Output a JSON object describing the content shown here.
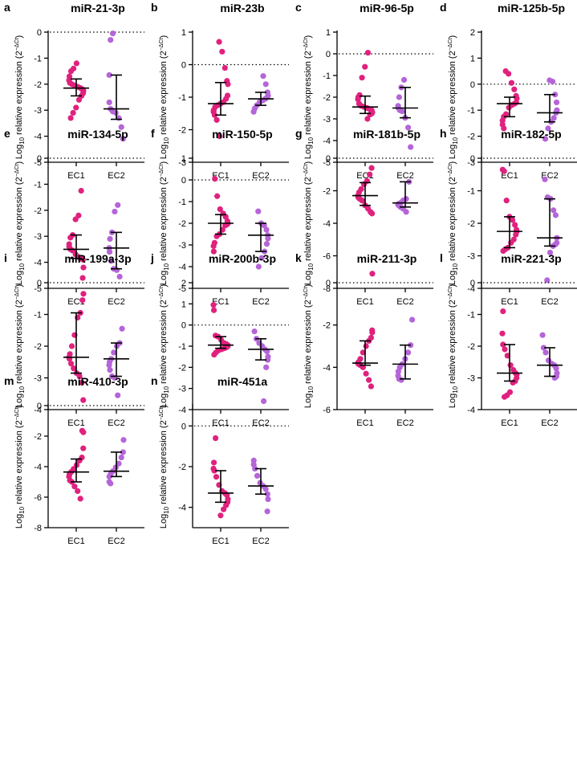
{
  "ylabel_parts": {
    "log": "Log",
    "sub": "10",
    "mid": " relative expression (2",
    "sup": "−ΔCt",
    "end": ")"
  },
  "colors": {
    "EC1": "#e0217e",
    "EC2": "#b565d8"
  },
  "chart_data": [
    {
      "type": "scatter",
      "letter": "a",
      "title": "miR-21-3p",
      "xlabel": "",
      "categories": [
        "EC1",
        "EC2"
      ],
      "ylim": [
        -5,
        0
      ],
      "yticks": [
        0,
        -1,
        -2,
        -3,
        -4,
        -5
      ],
      "series": [
        {
          "name": "EC1",
          "median": -2.15,
          "iqr": [
            -2.45,
            -1.8
          ],
          "values": [
            -1.2,
            -1.4,
            -1.5,
            -1.7,
            -1.85,
            -1.95,
            -2.0,
            -2.05,
            -2.1,
            -2.15,
            -2.2,
            -2.25,
            -2.35,
            -2.45,
            -2.6,
            -2.9,
            -3.1,
            -3.3
          ]
        },
        {
          "name": "EC2",
          "median": -2.95,
          "iqr": [
            -3.35,
            -1.65
          ],
          "values": [
            -0.05,
            -0.3,
            -1.65,
            -2.7,
            -2.95,
            -3.05,
            -3.1,
            -3.3,
            -3.65,
            -4.1
          ]
        }
      ]
    },
    {
      "type": "scatter",
      "letter": "b",
      "title": "miR-23b",
      "xlabel": "",
      "categories": [
        "EC1",
        "EC2"
      ],
      "ylim": [
        -3,
        1
      ],
      "yticks": [
        1,
        0,
        -1,
        -2,
        -3
      ],
      "series": [
        {
          "name": "EC1",
          "median": -1.2,
          "iqr": [
            -1.55,
            -0.55
          ],
          "values": [
            0.7,
            0.4,
            -0.1,
            -0.5,
            -0.6,
            -0.95,
            -1.05,
            -1.15,
            -1.2,
            -1.25,
            -1.3,
            -1.4,
            -1.45,
            -1.55,
            -1.7,
            -2.2
          ]
        },
        {
          "name": "EC2",
          "median": -1.05,
          "iqr": [
            -1.25,
            -0.85
          ],
          "values": [
            -0.35,
            -0.6,
            -0.85,
            -0.95,
            -1.0,
            -1.05,
            -1.1,
            -1.15,
            -1.25,
            -1.35,
            -1.45
          ]
        }
      ]
    },
    {
      "type": "scatter",
      "letter": "c",
      "title": "miR-96-5p",
      "xlabel": "",
      "categories": [
        "EC1",
        "EC2"
      ],
      "ylim": [
        -5,
        1
      ],
      "yticks": [
        1,
        0,
        -1,
        -2,
        -3,
        -4,
        -5
      ],
      "series": [
        {
          "name": "EC1",
          "median": -2.45,
          "iqr": [
            -2.75,
            -1.95
          ],
          "values": [
            0.05,
            -0.6,
            -1.1,
            -1.9,
            -2.0,
            -2.1,
            -2.3,
            -2.4,
            -2.45,
            -2.5,
            -2.55,
            -2.6,
            -2.7,
            -2.75,
            -2.8,
            -3.0
          ]
        },
        {
          "name": "EC2",
          "median": -2.5,
          "iqr": [
            -2.95,
            -1.55
          ],
          "values": [
            -1.2,
            -1.55,
            -2.0,
            -2.4,
            -2.5,
            -2.6,
            -2.65,
            -2.95,
            -3.4,
            -4.3
          ]
        }
      ]
    },
    {
      "type": "scatter",
      "letter": "d",
      "title": "miR-125b-5p",
      "xlabel": "",
      "categories": [
        "EC1",
        "EC2"
      ],
      "ylim": [
        -3,
        2
      ],
      "yticks": [
        2,
        1,
        0,
        -1,
        -2,
        -3
      ],
      "series": [
        {
          "name": "EC1",
          "median": -0.75,
          "iqr": [
            -1.25,
            -0.5
          ],
          "values": [
            0.5,
            0.4,
            0.05,
            -0.2,
            -0.45,
            -0.55,
            -0.7,
            -0.75,
            -0.8,
            -0.9,
            -1.15,
            -1.25,
            -1.4,
            -1.55,
            -1.7
          ]
        },
        {
          "name": "EC2",
          "median": -1.1,
          "iqr": [
            -1.45,
            -0.4
          ],
          "values": [
            0.15,
            0.1,
            -0.4,
            -0.7,
            -1.0,
            -1.1,
            -1.3,
            -1.45,
            -1.7,
            -2.1
          ]
        }
      ]
    },
    {
      "type": "scatter",
      "letter": "e",
      "title": "miR-134-5p",
      "xlabel": "",
      "categories": [
        "EC1",
        "EC2"
      ],
      "ylim": [
        -5,
        0
      ],
      "yticks": [
        0,
        -1,
        -2,
        -3,
        -4,
        -5
      ],
      "series": [
        {
          "name": "EC1",
          "median": -3.5,
          "iqr": [
            -3.85,
            -2.95
          ],
          "values": [
            -1.25,
            -2.2,
            -2.35,
            -2.95,
            -3.05,
            -3.3,
            -3.4,
            -3.5,
            -3.55,
            -3.7,
            -3.8,
            -3.85,
            -3.9,
            -4.2,
            -4.6
          ]
        },
        {
          "name": "EC2",
          "median": -3.45,
          "iqr": [
            -4.25,
            -2.85
          ],
          "values": [
            -1.8,
            -2.05,
            -2.85,
            -3.1,
            -3.45,
            -3.6,
            -3.95,
            -4.25,
            -4.3,
            -4.55
          ]
        }
      ]
    },
    {
      "type": "scatter",
      "letter": "f",
      "title": "miR-150-5p",
      "xlabel": "",
      "categories": [
        "EC1",
        "EC2"
      ],
      "ylim": [
        -5,
        1
      ],
      "yticks": [
        1,
        0,
        -1,
        -2,
        -3,
        -4,
        -5
      ],
      "series": [
        {
          "name": "EC1",
          "median": -2.0,
          "iqr": [
            -2.5,
            -1.6
          ],
          "values": [
            0.05,
            -0.75,
            -1.35,
            -1.55,
            -1.7,
            -1.9,
            -2.0,
            -2.05,
            -2.1,
            -2.3,
            -2.5,
            -2.6,
            -2.9,
            -3.05,
            -3.3
          ]
        },
        {
          "name": "EC2",
          "median": -2.55,
          "iqr": [
            -3.3,
            -2.0
          ],
          "values": [
            -1.45,
            -2.0,
            -2.1,
            -2.3,
            -2.55,
            -2.7,
            -2.95,
            -3.3,
            -3.6,
            -4.0
          ]
        }
      ]
    },
    {
      "type": "scatter",
      "letter": "g",
      "title": "miR-181b-5p",
      "xlabel": "",
      "categories": [
        "EC1",
        "EC2"
      ],
      "ylim": [
        -8,
        0
      ],
      "yticks": [
        0,
        -2,
        -4,
        -6,
        -8
      ],
      "series": [
        {
          "name": "EC1",
          "median": -2.3,
          "iqr": [
            -2.9,
            -1.5
          ],
          "values": [
            -0.6,
            -1.0,
            -1.4,
            -1.6,
            -1.9,
            -2.1,
            -2.3,
            -2.4,
            -2.5,
            -2.6,
            -2.9,
            -3.1,
            -3.3,
            -3.4,
            -7.1
          ]
        },
        {
          "name": "EC2",
          "median": -2.75,
          "iqr": [
            -3.0,
            -1.45
          ],
          "values": [
            -1.45,
            -2.5,
            -2.6,
            -2.75,
            -2.8,
            -2.85,
            -2.9,
            -3.0,
            -3.1,
            -3.3
          ]
        }
      ]
    },
    {
      "type": "scatter",
      "letter": "h",
      "title": "miR-182-5p",
      "xlabel": "",
      "categories": [
        "EC1",
        "EC2"
      ],
      "ylim": [
        -4,
        0
      ],
      "yticks": [
        0,
        -1,
        -2,
        -3,
        -4
      ],
      "series": [
        {
          "name": "EC1",
          "median": -2.25,
          "iqr": [
            -2.75,
            -1.8
          ],
          "values": [
            -0.35,
            -0.4,
            -1.3,
            -1.8,
            -1.9,
            -2.05,
            -2.2,
            -2.25,
            -2.35,
            -2.5,
            -2.6,
            -2.75,
            -2.8,
            -2.85
          ]
        },
        {
          "name": "EC2",
          "median": -2.45,
          "iqr": [
            -2.7,
            -1.25
          ],
          "values": [
            -0.65,
            -1.2,
            -1.25,
            -1.6,
            -1.75,
            -2.45,
            -2.6,
            -2.65,
            -2.7,
            -2.9,
            -3.75
          ]
        }
      ]
    },
    {
      "type": "scatter",
      "letter": "i",
      "title": "miR-199a-3p",
      "xlabel": "",
      "categories": [
        "EC1",
        "EC2"
      ],
      "ylim": [
        -4,
        0
      ],
      "yticks": [
        0,
        -1,
        -2,
        -3,
        -4
      ],
      "series": [
        {
          "name": "EC1",
          "median": -2.35,
          "iqr": [
            -2.85,
            -0.95
          ],
          "values": [
            -0.35,
            -0.55,
            -0.95,
            -1.1,
            -1.65,
            -2.0,
            -2.25,
            -2.35,
            -2.4,
            -2.55,
            -2.7,
            -2.85,
            -2.95,
            -3.15,
            -3.7
          ]
        },
        {
          "name": "EC2",
          "median": -2.4,
          "iqr": [
            -2.95,
            -1.9
          ],
          "values": [
            -1.45,
            -1.9,
            -2.0,
            -2.2,
            -2.4,
            -2.5,
            -2.6,
            -2.75,
            -2.95,
            -3.0,
            -3.55
          ]
        }
      ]
    },
    {
      "type": "scatter",
      "letter": "j",
      "title": "miR-200b-3p",
      "xlabel": "",
      "categories": [
        "EC1",
        "EC2"
      ],
      "ylim": [
        -4,
        2
      ],
      "yticks": [
        2,
        1,
        0,
        -1,
        -2,
        -3,
        -4
      ],
      "series": [
        {
          "name": "EC1",
          "median": -0.95,
          "iqr": [
            -1.1,
            -0.55
          ],
          "values": [
            0.95,
            0.7,
            -0.5,
            -0.55,
            -0.7,
            -0.85,
            -0.9,
            -0.95,
            -1.0,
            -1.05,
            -1.1,
            -1.15,
            -1.2,
            -1.3,
            -1.4
          ]
        },
        {
          "name": "EC2",
          "median": -1.15,
          "iqr": [
            -1.65,
            -0.65
          ],
          "values": [
            -0.3,
            -0.65,
            -0.85,
            -1.0,
            -1.15,
            -1.25,
            -1.5,
            -1.65,
            -2.0,
            -3.6
          ]
        }
      ]
    },
    {
      "type": "scatter",
      "letter": "k",
      "title": "miR-211-3p",
      "xlabel": "",
      "categories": [
        "EC1",
        "EC2"
      ],
      "ylim": [
        -6,
        0
      ],
      "yticks": [
        0,
        -2,
        -4,
        -6
      ],
      "series": [
        {
          "name": "EC1",
          "median": -3.8,
          "iqr": [
            -3.9,
            -2.75
          ],
          "values": [
            -2.25,
            -2.35,
            -2.6,
            -2.75,
            -3.0,
            -3.3,
            -3.6,
            -3.75,
            -3.8,
            -3.85,
            -3.9,
            -4.0,
            -4.3,
            -4.6,
            -4.9
          ]
        },
        {
          "name": "EC2",
          "median": -3.85,
          "iqr": [
            -4.55,
            -2.95
          ],
          "values": [
            -1.75,
            -2.95,
            -3.3,
            -3.6,
            -3.85,
            -4.0,
            -4.2,
            -4.4,
            -4.55,
            -4.6
          ]
        }
      ]
    },
    {
      "type": "scatter",
      "letter": "l",
      "title": "miR-221-3p",
      "xlabel": "",
      "categories": [
        "EC1",
        "EC2"
      ],
      "ylim": [
        -4,
        0
      ],
      "yticks": [
        0,
        -1,
        -2,
        -3,
        -4
      ],
      "series": [
        {
          "name": "EC1",
          "median": -2.85,
          "iqr": [
            -3.1,
            -1.95
          ],
          "values": [
            -0.9,
            -1.6,
            -1.95,
            -2.1,
            -2.3,
            -2.6,
            -2.75,
            -2.85,
            -2.9,
            -3.0,
            -3.1,
            -3.15,
            -3.45,
            -3.55,
            -3.6
          ]
        },
        {
          "name": "EC2",
          "median": -2.6,
          "iqr": [
            -2.95,
            -2.05
          ],
          "values": [
            -1.65,
            -2.05,
            -2.2,
            -2.45,
            -2.55,
            -2.6,
            -2.7,
            -2.85,
            -2.95,
            -3.0
          ]
        }
      ]
    },
    {
      "type": "scatter",
      "letter": "m",
      "title": "miR-410-3p",
      "xlabel": "",
      "categories": [
        "EC1",
        "EC2"
      ],
      "ylim": [
        -8,
        0
      ],
      "yticks": [
        0,
        -2,
        -4,
        -6,
        -8
      ],
      "series": [
        {
          "name": "EC1",
          "median": -4.35,
          "iqr": [
            -5.0,
            -3.5
          ],
          "values": [
            -1.65,
            -1.75,
            -2.8,
            -3.4,
            -3.6,
            -3.9,
            -4.15,
            -4.35,
            -4.5,
            -4.65,
            -4.9,
            -5.0,
            -5.3,
            -5.6,
            -6.1
          ]
        },
        {
          "name": "EC2",
          "median": -4.3,
          "iqr": [
            -4.65,
            -3.05
          ],
          "values": [
            -2.25,
            -3.05,
            -3.4,
            -3.8,
            -4.05,
            -4.3,
            -4.5,
            -4.65,
            -5.0,
            -5.1
          ]
        }
      ]
    },
    {
      "type": "scatter",
      "letter": "n",
      "title": "miR-451a",
      "xlabel": "",
      "categories": [
        "EC1",
        "EC2"
      ],
      "ylim": [
        -5,
        1
      ],
      "yticks": [
        0,
        -2,
        -4
      ],
      "series": [
        {
          "name": "EC1",
          "median": -3.3,
          "iqr": [
            -3.75,
            -2.2
          ],
          "values": [
            -0.6,
            -1.8,
            -2.1,
            -2.2,
            -2.5,
            -2.9,
            -3.2,
            -3.3,
            -3.4,
            -3.6,
            -3.75,
            -3.9,
            -4.1,
            -4.4
          ]
        },
        {
          "name": "EC2",
          "median": -2.95,
          "iqr": [
            -3.35,
            -2.1
          ],
          "values": [
            -1.7,
            -1.9,
            -2.1,
            -2.45,
            -2.8,
            -2.95,
            -3.1,
            -3.35,
            -3.6,
            -4.2
          ]
        }
      ]
    }
  ]
}
